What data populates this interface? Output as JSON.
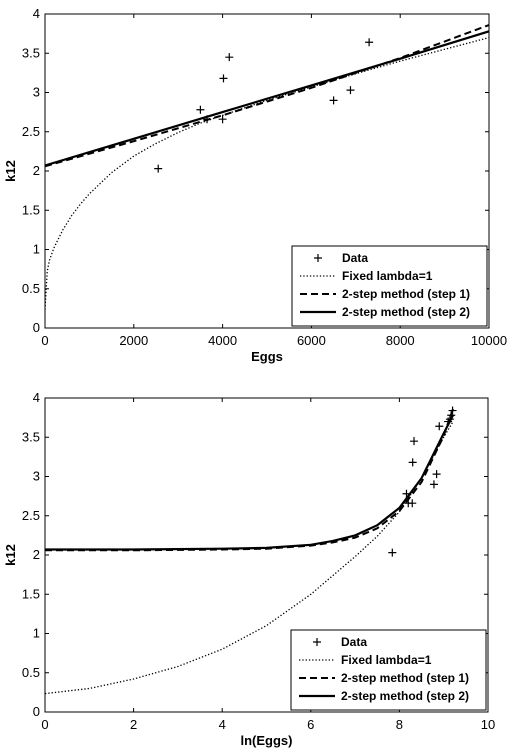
{
  "chart_data": [
    {
      "type": "line",
      "xlabel": "Eggs",
      "ylabel": "k12",
      "xlim": [
        0,
        10000
      ],
      "ylim": [
        0,
        4
      ],
      "xticks": [
        "0",
        "2000",
        "4000",
        "6000",
        "8000",
        "10000"
      ],
      "yticks": [
        "0",
        "0.5",
        "1",
        "1.5",
        "2",
        "2.5",
        "3",
        "3.5",
        "4"
      ],
      "grid": false,
      "legend_position": "bottom-right",
      "series": [
        {
          "name": "Data",
          "style": "markers-plus",
          "points": [
            [
              2550,
              2.03
            ],
            [
              3500,
              2.78
            ],
            [
              3650,
              2.66
            ],
            [
              4000,
              2.66
            ],
            [
              4020,
              3.18
            ],
            [
              4150,
              3.45
            ],
            [
              6500,
              2.9
            ],
            [
              6880,
              3.03
            ],
            [
              7300,
              3.64
            ]
          ]
        },
        {
          "name": "Fixed lambda=1",
          "style": "dotted",
          "points": [
            [
              1,
              0.235
            ],
            [
              50,
              0.72
            ],
            [
              100,
              0.86
            ],
            [
              200,
              1.02
            ],
            [
              400,
              1.25
            ],
            [
              600,
              1.43
            ],
            [
              800,
              1.58
            ],
            [
              1000,
              1.71
            ],
            [
              1500,
              1.98
            ],
            [
              2000,
              2.19
            ],
            [
              2500,
              2.35
            ],
            [
              3000,
              2.49
            ],
            [
              3500,
              2.61
            ],
            [
              4000,
              2.71
            ],
            [
              5000,
              2.9
            ],
            [
              6000,
              3.07
            ],
            [
              7000,
              3.24
            ],
            [
              8000,
              3.4
            ],
            [
              9000,
              3.55
            ],
            [
              10000,
              3.7
            ]
          ]
        },
        {
          "name": "2-step method (step 1)",
          "style": "dashed",
          "points": [
            [
              0,
              2.06
            ],
            [
              2000,
              2.38
            ],
            [
              4000,
              2.71
            ],
            [
              6000,
              3.06
            ],
            [
              8000,
              3.44
            ],
            [
              10000,
              3.86
            ]
          ]
        },
        {
          "name": "2-step method (step 2)",
          "style": "solid",
          "points": [
            [
              0,
              2.07
            ],
            [
              2000,
              2.41
            ],
            [
              4000,
              2.75
            ],
            [
              6000,
              3.09
            ],
            [
              8000,
              3.43
            ],
            [
              10000,
              3.78
            ]
          ]
        }
      ]
    },
    {
      "type": "line",
      "xlabel": "ln(Eggs)",
      "ylabel": "k12",
      "xlim": [
        0,
        10
      ],
      "ylim": [
        0,
        4
      ],
      "xticks": [
        "0",
        "2",
        "4",
        "6",
        "8",
        "10"
      ],
      "yticks": [
        "0",
        "0.5",
        "1",
        "1.5",
        "2",
        "2.5",
        "3",
        "3.5",
        "4"
      ],
      "grid": false,
      "legend_position": "bottom-right",
      "series": [
        {
          "name": "Data",
          "style": "markers-plus",
          "points": [
            [
              7.84,
              2.03
            ],
            [
              8.16,
              2.78
            ],
            [
              8.2,
              2.66
            ],
            [
              8.29,
              2.66
            ],
            [
              8.3,
              3.18
            ],
            [
              8.33,
              3.45
            ],
            [
              8.78,
              2.9
            ],
            [
              8.84,
              3.03
            ],
            [
              8.9,
              3.64
            ],
            [
              9.1,
              3.7
            ],
            [
              9.14,
              3.73
            ],
            [
              9.17,
              3.78
            ],
            [
              9.2,
              3.84
            ]
          ]
        },
        {
          "name": "Fixed lambda=1",
          "style": "dotted",
          "points": [
            [
              0,
              0.235
            ],
            [
              1,
              0.3
            ],
            [
              2,
              0.42
            ],
            [
              3,
              0.58
            ],
            [
              4,
              0.8
            ],
            [
              5,
              1.1
            ],
            [
              6,
              1.5
            ],
            [
              7,
              1.98
            ],
            [
              7.5,
              2.24
            ],
            [
              8,
              2.55
            ],
            [
              8.5,
              2.98
            ],
            [
              9,
              3.5
            ],
            [
              9.21,
              3.7
            ]
          ]
        },
        {
          "name": "2-step method (step 1)",
          "style": "dashed",
          "points": [
            [
              0,
              2.06
            ],
            [
              2,
              2.06
            ],
            [
              4,
              2.07
            ],
            [
              5,
              2.08
            ],
            [
              6,
              2.12
            ],
            [
              6.5,
              2.16
            ],
            [
              7,
              2.22
            ],
            [
              7.5,
              2.34
            ],
            [
              8,
              2.56
            ],
            [
              8.5,
              2.93
            ],
            [
              9,
              3.52
            ],
            [
              9.21,
              3.86
            ]
          ]
        },
        {
          "name": "2-step method (step 2)",
          "style": "solid",
          "points": [
            [
              0,
              2.07
            ],
            [
              2,
              2.07
            ],
            [
              4,
              2.08
            ],
            [
              5,
              2.09
            ],
            [
              6,
              2.13
            ],
            [
              6.5,
              2.18
            ],
            [
              7,
              2.25
            ],
            [
              7.5,
              2.38
            ],
            [
              8,
              2.6
            ],
            [
              8.5,
              2.98
            ],
            [
              9,
              3.55
            ],
            [
              9.21,
              3.78
            ]
          ]
        }
      ]
    }
  ]
}
